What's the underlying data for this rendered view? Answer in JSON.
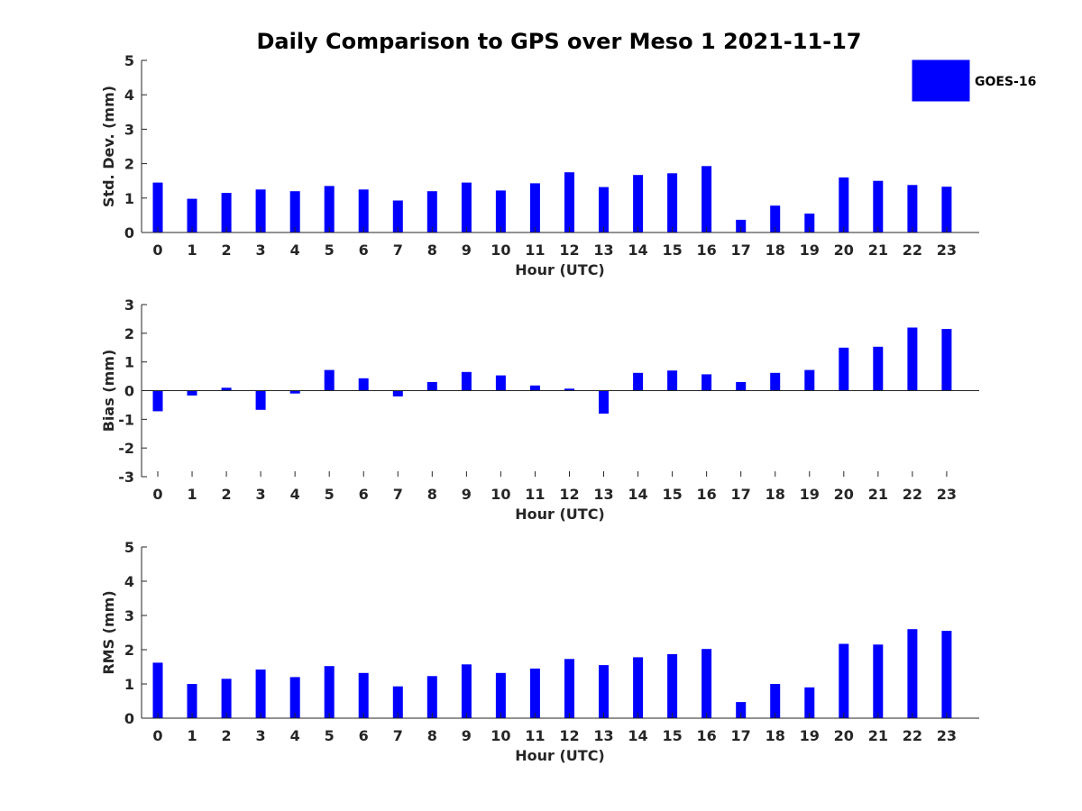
{
  "chart_data": {
    "title": "Daily Comparison to GPS over Meso 1 2021-11-17",
    "legend": {
      "label": "GOES-16",
      "color": "#0000ff",
      "placement": "top-right"
    },
    "bar_color": "#0000ff",
    "type": "bar",
    "panels": [
      {
        "id": "std",
        "type": "bar",
        "xlabel": "Hour (UTC)",
        "ylabel": "Std. Dev. (mm)",
        "ylim": [
          0,
          5
        ],
        "yticks": [
          "0",
          "1",
          "2",
          "3",
          "4",
          "5"
        ],
        "categories": [
          "0",
          "1",
          "2",
          "3",
          "4",
          "5",
          "6",
          "7",
          "8",
          "9",
          "10",
          "11",
          "12",
          "13",
          "14",
          "15",
          "16",
          "17",
          "18",
          "19",
          "20",
          "21",
          "22",
          "23"
        ],
        "series": [
          {
            "name": "GOES-16",
            "values": [
              1.45,
              0.98,
              1.15,
              1.25,
              1.2,
              1.35,
              1.25,
              0.93,
              1.2,
              1.45,
              1.22,
              1.43,
              1.75,
              1.32,
              1.67,
              1.72,
              1.93,
              0.37,
              0.78,
              0.55,
              1.6,
              1.5,
              1.38,
              1.33
            ]
          }
        ]
      },
      {
        "id": "bias",
        "type": "bar",
        "xlabel": "Hour (UTC)",
        "ylabel": "Bias (mm)",
        "ylim": [
          -3,
          3
        ],
        "yticks": [
          "-3",
          "-2",
          "-1",
          "0",
          "1",
          "2",
          "3"
        ],
        "categories": [
          "0",
          "1",
          "2",
          "3",
          "4",
          "5",
          "6",
          "7",
          "8",
          "9",
          "10",
          "11",
          "12",
          "13",
          "14",
          "15",
          "16",
          "17",
          "18",
          "19",
          "20",
          "21",
          "22",
          "23"
        ],
        "series": [
          {
            "name": "GOES-16",
            "values": [
              -0.72,
              -0.17,
              0.1,
              -0.67,
              -0.1,
              0.72,
              0.43,
              -0.2,
              0.3,
              0.65,
              0.53,
              0.18,
              0.07,
              -0.8,
              0.62,
              0.7,
              0.57,
              0.3,
              0.62,
              0.72,
              1.5,
              1.53,
              2.2,
              2.15
            ]
          }
        ]
      },
      {
        "id": "rms",
        "type": "bar",
        "xlabel": "Hour (UTC)",
        "ylabel": "RMS (mm)",
        "ylim": [
          0,
          5
        ],
        "yticks": [
          "0",
          "1",
          "2",
          "3",
          "4",
          "5"
        ],
        "categories": [
          "0",
          "1",
          "2",
          "3",
          "4",
          "5",
          "6",
          "7",
          "8",
          "9",
          "10",
          "11",
          "12",
          "13",
          "14",
          "15",
          "16",
          "17",
          "18",
          "19",
          "20",
          "21",
          "22",
          "23"
        ],
        "series": [
          {
            "name": "GOES-16",
            "values": [
              1.62,
              1.0,
              1.15,
              1.42,
              1.2,
              1.52,
              1.32,
              0.93,
              1.23,
              1.57,
              1.32,
              1.45,
              1.73,
              1.55,
              1.78,
              1.87,
              2.02,
              0.47,
              1.0,
              0.9,
              2.17,
              2.15,
              2.6,
              2.55
            ]
          }
        ]
      }
    ]
  }
}
